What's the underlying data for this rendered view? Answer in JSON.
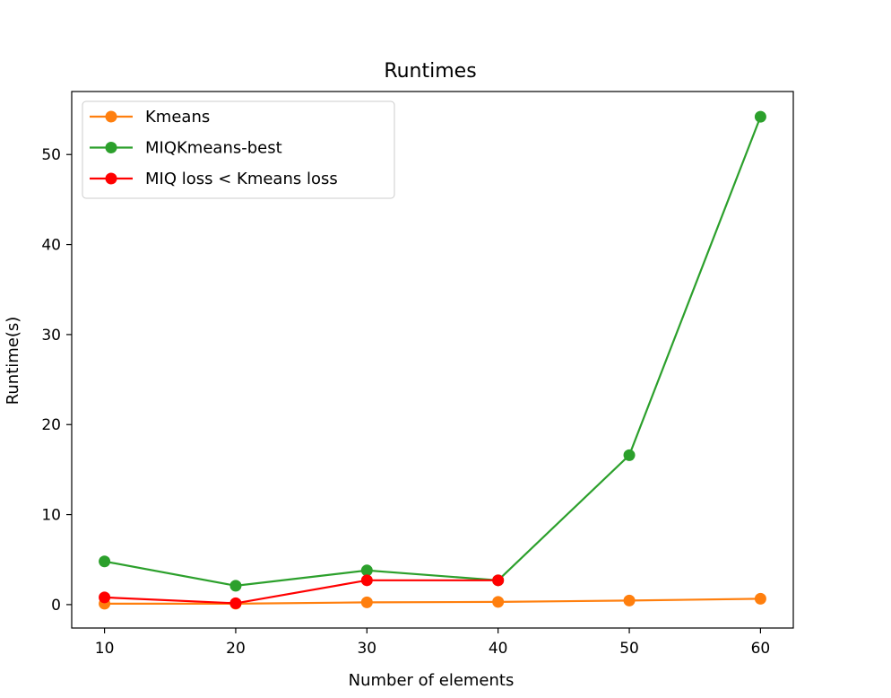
{
  "chart_data": {
    "type": "line",
    "title": "Runtimes",
    "xlabel": "Number of elements",
    "ylabel": "Runtime(s)",
    "xlim": [
      7.5,
      62.5
    ],
    "ylim": [
      -2.6,
      57.0
    ],
    "xticks": [
      10,
      20,
      30,
      40,
      50,
      60
    ],
    "yticks": [
      0,
      10,
      20,
      30,
      40,
      50
    ],
    "grid": false,
    "legend_position": "upper-left",
    "series": [
      {
        "name": "Kmeans",
        "color": "#ff7f0e",
        "x": [
          10,
          20,
          30,
          40,
          50,
          60
        ],
        "y": [
          0.1,
          0.1,
          0.25,
          0.3,
          0.45,
          0.65
        ]
      },
      {
        "name": "MIQKmeans-best",
        "color": "#2ca02c",
        "x": [
          10,
          20,
          30,
          40,
          50,
          60
        ],
        "y": [
          4.8,
          2.1,
          3.8,
          2.7,
          16.6,
          54.2
        ]
      },
      {
        "name": "MIQ loss < Kmeans loss",
        "color": "#ff0000",
        "x": [
          10,
          20,
          30,
          40
        ],
        "y": [
          0.8,
          0.15,
          2.7,
          2.7
        ]
      }
    ]
  }
}
